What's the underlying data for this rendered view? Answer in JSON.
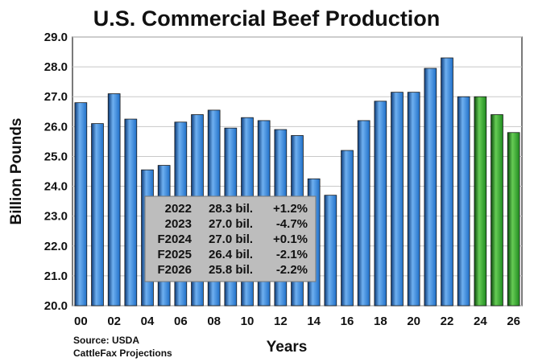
{
  "chart_data": {
    "type": "bar",
    "title": "U.S. Commercial Beef Production",
    "xlabel": "Years",
    "ylabel": "Billion Pounds",
    "ylim": [
      20.0,
      29.0
    ],
    "yticks": [
      "20.0",
      "21.0",
      "22.0",
      "23.0",
      "24.0",
      "25.0",
      "26.0",
      "27.0",
      "28.0",
      "29.0"
    ],
    "xtick_labels": [
      "00",
      "02",
      "04",
      "06",
      "08",
      "10",
      "12",
      "14",
      "16",
      "18",
      "20",
      "22",
      "24",
      "26"
    ],
    "categories": [
      "00",
      "01",
      "02",
      "03",
      "04",
      "05",
      "06",
      "07",
      "08",
      "09",
      "10",
      "11",
      "12",
      "13",
      "14",
      "15",
      "16",
      "17",
      "18",
      "19",
      "20",
      "21",
      "22",
      "23",
      "24",
      "25",
      "26"
    ],
    "values": [
      26.8,
      26.1,
      27.1,
      26.25,
      24.55,
      24.7,
      26.15,
      26.4,
      26.55,
      25.95,
      26.3,
      26.2,
      25.9,
      25.7,
      24.25,
      23.7,
      25.2,
      26.2,
      26.85,
      27.15,
      27.15,
      27.95,
      28.3,
      27.0,
      27.0,
      26.4,
      25.8
    ],
    "bar_kinds": [
      "actual",
      "actual",
      "actual",
      "actual",
      "actual",
      "actual",
      "actual",
      "actual",
      "actual",
      "actual",
      "actual",
      "actual",
      "actual",
      "actual",
      "actual",
      "actual",
      "actual",
      "actual",
      "actual",
      "actual",
      "actual",
      "actual",
      "actual",
      "actual",
      "forecast",
      "forecast",
      "forecast"
    ],
    "colors": {
      "actual": "#1f6fc8",
      "actual_dark": "#0b3a78",
      "actual_light": "#6fb0f0",
      "forecast": "#1f8a1f",
      "forecast_dark": "#0b4a0b",
      "forecast_light": "#66cc55",
      "annotation_bg": "#bdbdbd"
    },
    "grid": true,
    "legend": "none",
    "annotation": {
      "rows": [
        {
          "year": "2022",
          "value": "28.3 bil.",
          "change": "+1.2%"
        },
        {
          "year": "2023",
          "value": "27.0 bil.",
          "change": "-4.7%"
        },
        {
          "year": "F2024",
          "value": "27.0 bil.",
          "change": "+0.1%"
        },
        {
          "year": "F2025",
          "value": "26.4 bil.",
          "change": "-2.1%"
        },
        {
          "year": "F2026",
          "value": "25.8 bil.",
          "change": "-2.2%"
        }
      ]
    },
    "source_lines": [
      "Source: USDA",
      "CattleFax Projections"
    ]
  }
}
